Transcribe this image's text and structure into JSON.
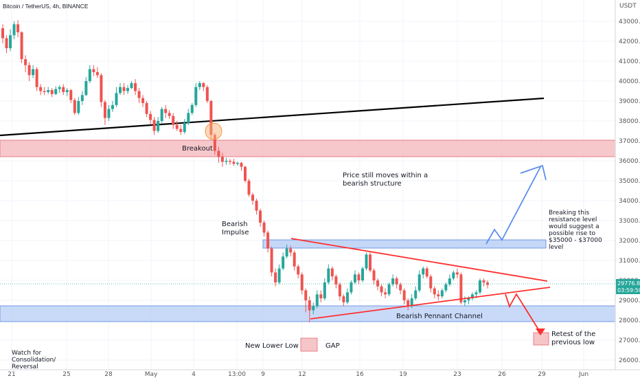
{
  "chart_data": {
    "type": "candlestick",
    "title": "Bitcoin / TetherUS, 4h, BINANCE",
    "currency": "USDT",
    "y_ticks": [
      26000,
      27000,
      28000,
      29000,
      30000,
      31000,
      32000,
      33000,
      34000,
      35000,
      36000,
      37000,
      38000,
      39000,
      40000,
      41000,
      42000,
      43000
    ],
    "ylim": [
      25750,
      43550
    ],
    "x_ticks": [
      "21",
      "25",
      "28",
      "May",
      "4",
      "13:00",
      "9",
      "12",
      "16",
      "19",
      "23",
      "26",
      "29",
      "Jun"
    ],
    "last_price": "29776.82",
    "countdown": "03:59:50",
    "colors": {
      "up": "#26a69a",
      "down": "#ef5350",
      "resistance": "#f4b6b9",
      "support": "#b7cdf5",
      "trend_red": "#ff2d2d",
      "projection": "#5b8ef0"
    },
    "candles": [
      [
        42650,
        42150,
        42850,
        41900
      ],
      [
        42150,
        41650,
        42300,
        41400
      ],
      [
        41650,
        42300,
        42600,
        41500
      ],
      [
        42300,
        42850,
        43000,
        42100
      ],
      [
        42850,
        42450,
        43050,
        42200
      ],
      [
        42450,
        41100,
        42500,
        40900
      ],
      [
        41100,
        40800,
        41300,
        40450
      ],
      [
        40800,
        40300,
        40950,
        40000
      ],
      [
        40300,
        40600,
        40800,
        40150
      ],
      [
        40600,
        39700,
        40700,
        39500
      ],
      [
        39700,
        39500,
        39850,
        39300
      ],
      [
        39500,
        39450,
        39700,
        39300
      ],
      [
        39450,
        39550,
        39700,
        39350
      ],
      [
        39550,
        39350,
        39650,
        39200
      ],
      [
        39350,
        39600,
        39750,
        39300
      ],
      [
        39600,
        39700,
        39800,
        39400
      ],
      [
        39700,
        39450,
        39850,
        39300
      ],
      [
        39450,
        39550,
        39650,
        39250
      ],
      [
        39550,
        39050,
        39600,
        38900
      ],
      [
        39050,
        38400,
        39150,
        38300
      ],
      [
        38400,
        39000,
        39200,
        38300
      ],
      [
        39000,
        39300,
        39500,
        38800
      ],
      [
        39300,
        40000,
        40200,
        39250
      ],
      [
        40000,
        40600,
        40800,
        39900
      ],
      [
        40600,
        40450,
        40800,
        40250
      ],
      [
        40450,
        40300,
        40700,
        40150
      ],
      [
        40300,
        38950,
        40400,
        38700
      ],
      [
        38950,
        38150,
        39050,
        37800
      ],
      [
        38150,
        38600,
        38800,
        38000
      ],
      [
        38600,
        38800,
        39000,
        38450
      ],
      [
        38800,
        39400,
        39700,
        38700
      ],
      [
        39400,
        39700,
        39900,
        39300
      ],
      [
        39700,
        39500,
        39900,
        39300
      ],
      [
        39500,
        39650,
        39800,
        39350
      ],
      [
        39650,
        39900,
        40000,
        39600
      ],
      [
        39900,
        39500,
        40100,
        39300
      ],
      [
        39500,
        39150,
        39650,
        38900
      ],
      [
        39150,
        38900,
        39300,
        38700
      ],
      [
        38900,
        38350,
        39000,
        38200
      ],
      [
        38350,
        38050,
        38500,
        37800
      ],
      [
        38050,
        37500,
        38200,
        37300
      ],
      [
        37500,
        38000,
        38200,
        37400
      ],
      [
        38000,
        38600,
        38700,
        37900
      ],
      [
        38600,
        38400,
        38800,
        38150
      ],
      [
        38400,
        38250,
        38550,
        38100
      ],
      [
        38250,
        37800,
        38400,
        37600
      ],
      [
        37800,
        37600,
        38000,
        37500
      ],
      [
        37600,
        37450,
        37800,
        37300
      ],
      [
        37450,
        37900,
        38100,
        37350
      ],
      [
        37900,
        38400,
        38600,
        37800
      ],
      [
        38400,
        38800,
        38900,
        38300
      ],
      [
        38800,
        39700,
        39900,
        38700
      ],
      [
        39700,
        39900,
        40000,
        39550
      ],
      [
        39900,
        39700,
        39950,
        39500
      ],
      [
        39700,
        39000,
        39800,
        38900
      ],
      [
        39000,
        37300,
        39050,
        37100
      ],
      [
        37300,
        36500,
        37400,
        36300
      ],
      [
        36500,
        36200,
        36700,
        35900
      ],
      [
        36200,
        35950,
        36400,
        35700
      ],
      [
        35950,
        36000,
        36150,
        35800
      ],
      [
        36000,
        35950,
        36100,
        35800
      ],
      [
        35950,
        35850,
        36100,
        35750
      ],
      [
        35850,
        35900,
        35950,
        35750
      ],
      [
        35900,
        35700,
        35950,
        35500
      ],
      [
        35700,
        35000,
        35750,
        34900
      ],
      [
        35000,
        34300,
        35100,
        34200
      ],
      [
        34300,
        34000,
        34400,
        33800
      ],
      [
        34000,
        33500,
        34100,
        33300
      ],
      [
        33500,
        32900,
        33600,
        32700
      ],
      [
        32900,
        32400,
        33000,
        32200
      ],
      [
        32400,
        31600,
        32500,
        31400
      ],
      [
        31600,
        30400,
        31700,
        30200
      ],
      [
        30400,
        29900,
        30600,
        29700
      ],
      [
        29900,
        30600,
        30800,
        29800
      ],
      [
        30600,
        31200,
        31400,
        30500
      ],
      [
        31200,
        31600,
        31800,
        31100
      ],
      [
        31600,
        31400,
        31750,
        31200
      ],
      [
        31400,
        30700,
        31500,
        30500
      ],
      [
        30700,
        30300,
        30800,
        30100
      ],
      [
        30300,
        29500,
        30400,
        29300
      ],
      [
        29500,
        29000,
        29600,
        28400
      ],
      [
        29000,
        28500,
        29200,
        27900
      ],
      [
        28500,
        28700,
        28900,
        28300
      ],
      [
        28700,
        29300,
        29500,
        28600
      ],
      [
        29300,
        29100,
        29500,
        28900
      ],
      [
        29100,
        29900,
        30100,
        29000
      ],
      [
        29900,
        30600,
        30800,
        29800
      ],
      [
        30600,
        30200,
        30700,
        30000
      ],
      [
        30200,
        29800,
        30300,
        29600
      ],
      [
        29800,
        29200,
        29900,
        29000
      ],
      [
        29200,
        28900,
        29300,
        28700
      ],
      [
        28900,
        29400,
        29600,
        28800
      ],
      [
        29400,
        29900,
        30000,
        29300
      ],
      [
        29900,
        30300,
        30500,
        29800
      ],
      [
        30300,
        30000,
        30400,
        29800
      ],
      [
        30000,
        30600,
        30700,
        29900
      ],
      [
        30600,
        31300,
        31400,
        30500
      ],
      [
        31300,
        30500,
        31400,
        30400
      ],
      [
        30500,
        30000,
        30600,
        29800
      ],
      [
        30000,
        29700,
        30100,
        29500
      ],
      [
        29700,
        29400,
        29800,
        29200
      ],
      [
        29400,
        29300,
        29600,
        29100
      ],
      [
        29300,
        29800,
        29900,
        29200
      ],
      [
        29800,
        30100,
        30300,
        29700
      ],
      [
        30100,
        29800,
        30200,
        29600
      ],
      [
        29800,
        29500,
        29900,
        29300
      ],
      [
        29500,
        29000,
        29600,
        28800
      ],
      [
        29000,
        28700,
        29100,
        28500
      ],
      [
        28700,
        29100,
        29300,
        28600
      ],
      [
        29100,
        29500,
        29700,
        29000
      ],
      [
        29500,
        30300,
        30500,
        29400
      ],
      [
        30300,
        30600,
        30700,
        30100
      ],
      [
        30600,
        30200,
        30700,
        30100
      ],
      [
        30200,
        29600,
        30300,
        29400
      ],
      [
        29600,
        29300,
        29700,
        29100
      ],
      [
        29300,
        29200,
        29500,
        29000
      ],
      [
        29200,
        29500,
        29600,
        29100
      ],
      [
        29500,
        29800,
        29900,
        29400
      ],
      [
        29800,
        30100,
        30300,
        29700
      ],
      [
        30100,
        30400,
        30500,
        30000
      ],
      [
        30400,
        30300,
        30600,
        30100
      ],
      [
        30300,
        28900,
        30400,
        28800
      ],
      [
        28900,
        29000,
        29200,
        28700
      ],
      [
        29000,
        29100,
        29200,
        28800
      ],
      [
        29100,
        29300,
        29400,
        29000
      ],
      [
        29300,
        29400,
        29500,
        29100
      ],
      [
        29400,
        30000,
        30100,
        29300
      ],
      [
        30000,
        29900,
        30100,
        29700
      ],
      [
        29900,
        29776,
        30000,
        29600
      ]
    ],
    "annotations": {
      "breakout": "Breakout",
      "bearish_impulse_1": "Bearish",
      "bearish_impulse_2": "Impulse",
      "structure_1": "Price still moves within a",
      "structure_2": "bearish structure",
      "resistance_1": "Breaking this",
      "resistance_2": "resistance level",
      "resistance_3": "would suggest a",
      "resistance_4": "possible rise to",
      "resistance_5": "$35000 - $37000",
      "resistance_6": "level",
      "pennant": "Bearish Pennant Channel",
      "new_low": "New Lower Low",
      "gap": "GAP",
      "retest_1": "Retest of the",
      "retest_2": "previous low",
      "watch_1": "Watch for",
      "watch_2": "Consolidation/",
      "watch_3": "Reversal"
    }
  }
}
